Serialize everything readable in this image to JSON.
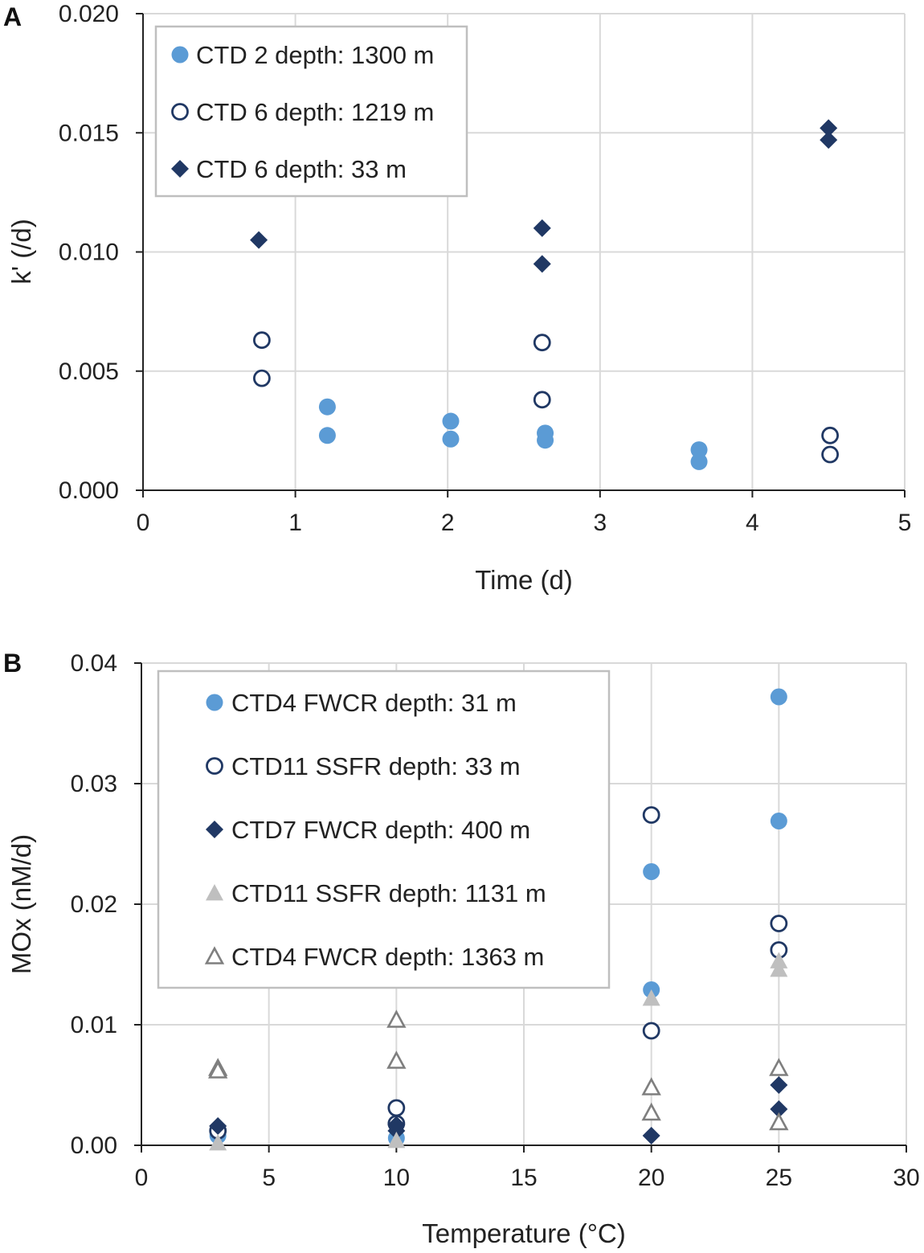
{
  "chart_data": [
    {
      "type": "scatter",
      "panel_label": "A",
      "xlabel": "Time (d)",
      "ylabel": "k' (/d)",
      "xlim": [
        0,
        5
      ],
      "ylim": [
        0,
        0.02
      ],
      "x_ticks": [
        "0",
        "1",
        "2",
        "3",
        "4",
        "5"
      ],
      "y_ticks": [
        "0.000",
        "0.005",
        "0.010",
        "0.015",
        "0.020"
      ],
      "grid": true,
      "legend_position": "top-left",
      "series": [
        {
          "name": "CTD 2 depth: 1300 m",
          "marker": "filled-circle",
          "color": "#5b9bd5",
          "points": [
            {
              "x": 1.21,
              "y": 0.0035
            },
            {
              "x": 1.21,
              "y": 0.0023
            },
            {
              "x": 2.02,
              "y": 0.0029
            },
            {
              "x": 2.02,
              "y": 0.00215
            },
            {
              "x": 2.64,
              "y": 0.0024
            },
            {
              "x": 2.64,
              "y": 0.0021
            },
            {
              "x": 3.65,
              "y": 0.0017
            },
            {
              "x": 3.65,
              "y": 0.0012
            }
          ]
        },
        {
          "name": "CTD 6 depth: 1219 m",
          "marker": "open-circle",
          "color": "#203864",
          "points": [
            {
              "x": 0.78,
              "y": 0.0063
            },
            {
              "x": 0.78,
              "y": 0.0047
            },
            {
              "x": 2.62,
              "y": 0.0062
            },
            {
              "x": 2.62,
              "y": 0.0038
            },
            {
              "x": 4.51,
              "y": 0.0023
            },
            {
              "x": 4.51,
              "y": 0.0015
            }
          ]
        },
        {
          "name": "CTD 6 depth: 33 m",
          "marker": "filled-diamond",
          "color": "#203864",
          "points": [
            {
              "x": 0.76,
              "y": 0.0105
            },
            {
              "x": 2.62,
              "y": 0.011
            },
            {
              "x": 2.62,
              "y": 0.0095
            },
            {
              "x": 4.5,
              "y": 0.0152
            },
            {
              "x": 4.5,
              "y": 0.0147
            }
          ]
        }
      ]
    },
    {
      "type": "scatter",
      "panel_label": "B",
      "xlabel": "Temperature (°C)",
      "ylabel": "MOx (nM/d)",
      "xlim": [
        0,
        30
      ],
      "ylim": [
        0,
        0.04
      ],
      "x_ticks": [
        "0",
        "5",
        "10",
        "15",
        "20",
        "25",
        "30"
      ],
      "y_ticks": [
        "0.00",
        "0.01",
        "0.02",
        "0.03",
        "0.04"
      ],
      "grid": true,
      "legend_position": "top-left",
      "series": [
        {
          "name": "CTD4 FWCR depth: 31 m",
          "marker": "filled-circle",
          "color": "#5b9bd5",
          "points": [
            {
              "x": 3,
              "y": 0.0008
            },
            {
              "x": 10,
              "y": 0.0006
            },
            {
              "x": 20,
              "y": 0.0227
            },
            {
              "x": 20,
              "y": 0.0129
            },
            {
              "x": 25,
              "y": 0.0372
            },
            {
              "x": 25,
              "y": 0.0269
            }
          ]
        },
        {
          "name": "CTD11 SSFR depth: 33 m",
          "marker": "open-circle",
          "color": "#203864",
          "points": [
            {
              "x": 3,
              "y": 0.0012
            },
            {
              "x": 10,
              "y": 0.0031
            },
            {
              "x": 10,
              "y": 0.0018
            },
            {
              "x": 20,
              "y": 0.0274
            },
            {
              "x": 20,
              "y": 0.0095
            },
            {
              "x": 25,
              "y": 0.0184
            },
            {
              "x": 25,
              "y": 0.0162
            }
          ]
        },
        {
          "name": "CTD7 FWCR depth: 400 m",
          "marker": "filled-diamond",
          "color": "#203864",
          "points": [
            {
              "x": 3,
              "y": 0.0016
            },
            {
              "x": 10,
              "y": 0.0017
            },
            {
              "x": 10,
              "y": 0.0012
            },
            {
              "x": 20,
              "y": 0.0008
            },
            {
              "x": 25,
              "y": 0.005
            },
            {
              "x": 25,
              "y": 0.003
            }
          ]
        },
        {
          "name": "CTD11 SSFR depth: 1131 m",
          "marker": "filled-triangle",
          "color": "#bfbfbf",
          "points": [
            {
              "x": 3,
              "y": 0.0002
            },
            {
              "x": 10,
              "y": 0.0004
            },
            {
              "x": 20,
              "y": 0.0122
            },
            {
              "x": 25,
              "y": 0.0153
            },
            {
              "x": 25,
              "y": 0.0146
            }
          ]
        },
        {
          "name": "CTD4 FWCR depth: 1363 m",
          "marker": "open-triangle",
          "color": "#7f7f7f",
          "points": [
            {
              "x": 3,
              "y": 0.0064
            },
            {
              "x": 3,
              "y": 0.0062
            },
            {
              "x": 10,
              "y": 0.0104
            },
            {
              "x": 10,
              "y": 0.007
            },
            {
              "x": 20,
              "y": 0.0048
            },
            {
              "x": 20,
              "y": 0.0027
            },
            {
              "x": 25,
              "y": 0.0064
            },
            {
              "x": 25,
              "y": 0.0019
            }
          ]
        }
      ]
    }
  ]
}
